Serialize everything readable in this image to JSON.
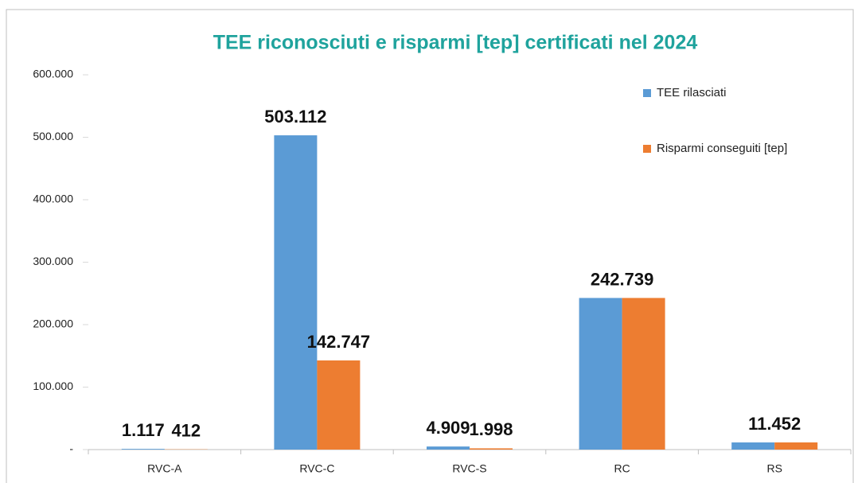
{
  "chart_data": {
    "type": "bar",
    "title": "TEE riconosciuti e risparmi [tep] certificati nel 2024",
    "categories": [
      "RVC-A",
      "RVC-C",
      "RVC-S",
      "RC",
      "RS"
    ],
    "series": [
      {
        "name": "TEE rilasciati",
        "color": "#5b9bd5",
        "values": [
          1117,
          503112,
          4909,
          242739,
          11452
        ],
        "value_labels": [
          "1.117",
          "503.112",
          "4.909",
          "242.739",
          "11.452"
        ]
      },
      {
        "name": "Risparmi conseguiti [tep]",
        "color": "#ed7d31",
        "values": [
          412,
          142747,
          1998,
          242739,
          11452
        ],
        "value_labels": [
          "412",
          "142.747",
          "1.998",
          null,
          null
        ]
      }
    ],
    "ylim": [
      0,
      600000
    ],
    "yticks": [
      {
        "value": 0,
        "label": "-"
      },
      {
        "value": 100000,
        "label": "100.000"
      },
      {
        "value": 200000,
        "label": "200.000"
      },
      {
        "value": 300000,
        "label": "300.000"
      },
      {
        "value": 400000,
        "label": "400.000"
      },
      {
        "value": 500000,
        "label": "500.000"
      },
      {
        "value": 600000,
        "label": "600.000"
      }
    ],
    "legend": "top-right"
  }
}
